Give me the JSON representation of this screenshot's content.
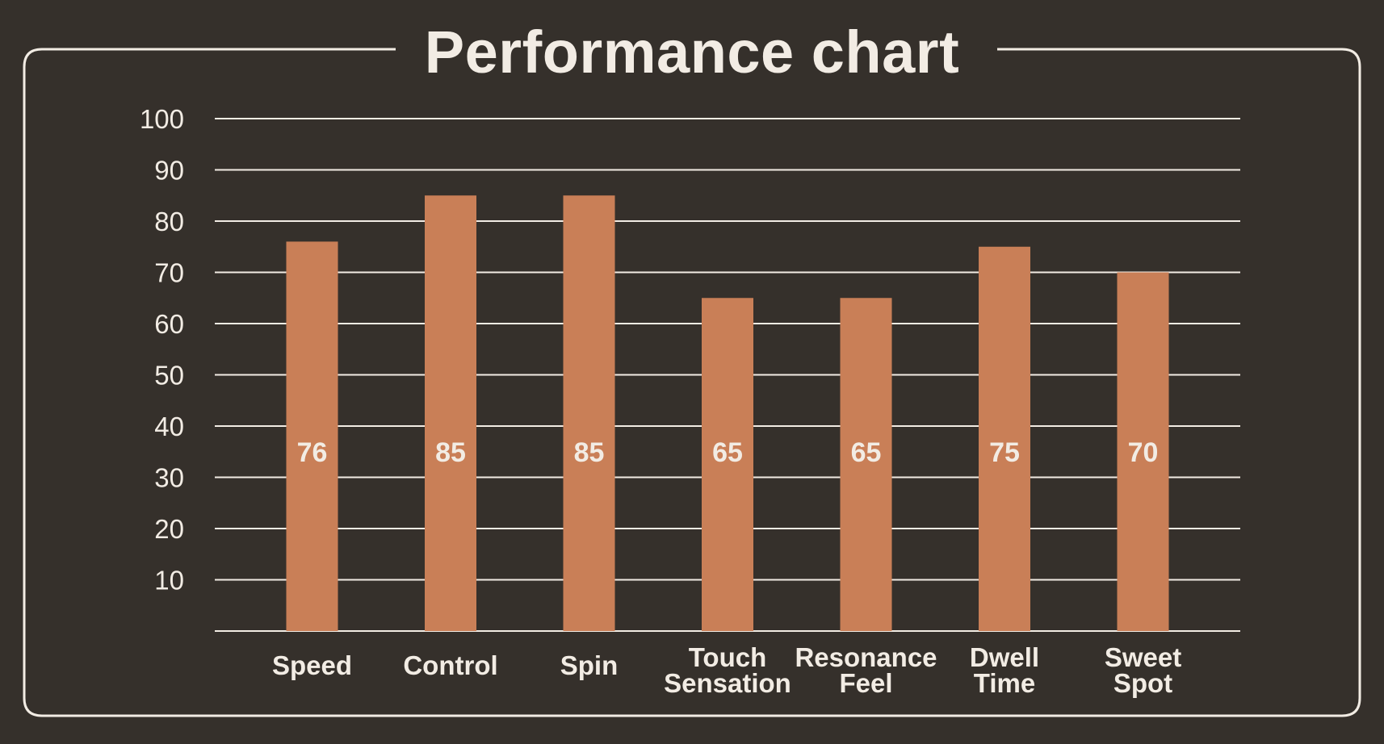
{
  "chart_data": {
    "type": "bar",
    "title": "Performance chart",
    "xlabel": "",
    "ylabel": "",
    "categories": [
      "Speed",
      "Control",
      "Spin",
      "Touch Sensation",
      "Resonance Feel",
      "Dwell Time",
      "Sweet Spot"
    ],
    "category_lines": [
      [
        "Speed"
      ],
      [
        "Control"
      ],
      [
        "Spin"
      ],
      [
        "Touch",
        "Sensation"
      ],
      [
        "Resonance",
        "Feel"
      ],
      [
        "Dwell",
        "Time"
      ],
      [
        "Sweet",
        "Spot"
      ]
    ],
    "values": [
      76,
      85,
      85,
      65,
      65,
      75,
      70
    ],
    "data_labels": [
      "76",
      "85",
      "85",
      "65",
      "65",
      "75",
      "70"
    ],
    "ylim": [
      0,
      100
    ],
    "yticks": [
      10,
      20,
      30,
      40,
      50,
      60,
      70,
      80,
      90,
      100
    ],
    "grid": true,
    "legend": "none"
  },
  "colors": {
    "background": "#35302b",
    "bar": "#c97f57",
    "grid": "#f2ece4",
    "text": "#f2ece4",
    "frame": "#f2ece4"
  }
}
